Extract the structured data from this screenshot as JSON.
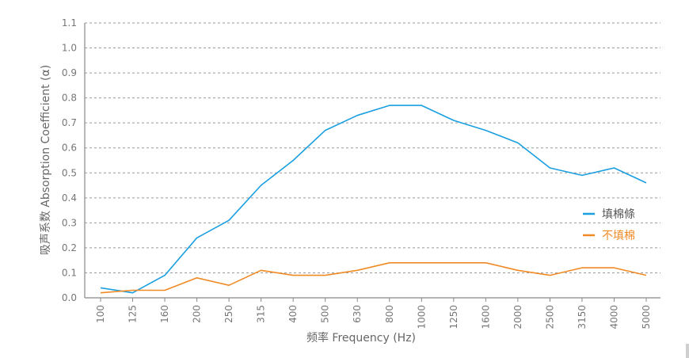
{
  "chart_data": {
    "type": "line",
    "xlabel": "频率 Frequency (Hz)",
    "ylabel": "吸声系数 Absorption Coefficient (α)",
    "categories": [
      "100",
      "125",
      "160",
      "200",
      "250",
      "315",
      "400",
      "500",
      "630",
      "800",
      "1000",
      "1250",
      "1600",
      "2000",
      "2500",
      "3150",
      "4000",
      "5000"
    ],
    "ylim": [
      0.0,
      1.1
    ],
    "yticks": [
      "0.0",
      "0.1",
      "0.2",
      "0.3",
      "0.4",
      "0.5",
      "0.6",
      "0.7",
      "0.8",
      "0.9",
      "1.0",
      "1.1"
    ],
    "grid": true,
    "legend_position": "right",
    "series": [
      {
        "name": "填棉條",
        "color": "#1a9fe0",
        "values": [
          0.04,
          0.02,
          0.09,
          0.24,
          0.31,
          0.45,
          0.55,
          0.67,
          0.73,
          0.77,
          0.77,
          0.71,
          0.67,
          0.62,
          0.52,
          0.49,
          0.52,
          0.46
        ]
      },
      {
        "name": "不填棉",
        "color": "#f08a24",
        "values": [
          0.02,
          0.03,
          0.03,
          0.08,
          0.05,
          0.11,
          0.09,
          0.09,
          0.11,
          0.14,
          0.14,
          0.14,
          0.14,
          0.11,
          0.09,
          0.12,
          0.12,
          0.09
        ]
      }
    ]
  }
}
